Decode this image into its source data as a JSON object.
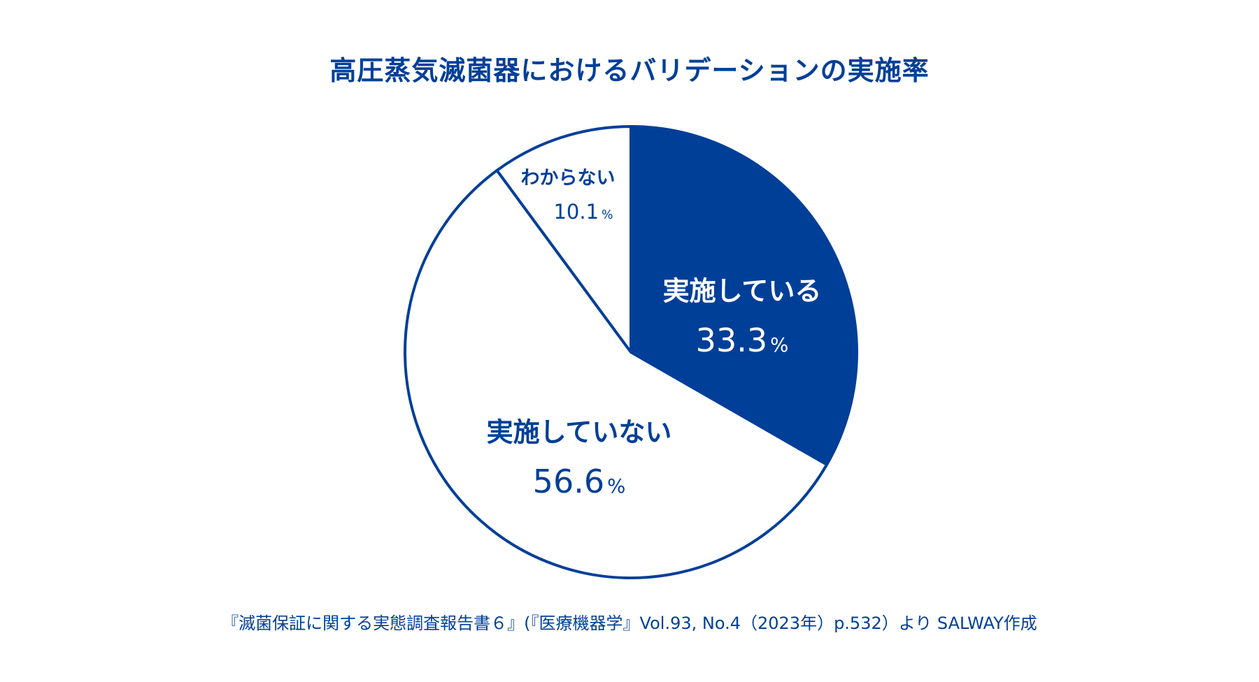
{
  "chart_data": {
    "type": "pie",
    "title": "高圧蒸気滅菌器におけるバリデーションの実施率",
    "slices": [
      {
        "label": "実施している",
        "value": 33.3,
        "value_text": "33.3",
        "fill": "#003f98",
        "text_color": "#ffffff"
      },
      {
        "label": "実施していない",
        "value": 56.6,
        "value_text": "56.6",
        "fill": "#ffffff",
        "text_color": "#003f98"
      },
      {
        "label": "わからない",
        "value": 10.1,
        "value_text": "10.1",
        "fill": "#ffffff",
        "text_color": "#003f98"
      }
    ],
    "unit": "%",
    "start": "top",
    "direction": "clockwise",
    "stroke_color": "#003f98"
  },
  "source": "『滅菌保証に関する実態調査報告書６』(『医療機器学』Vol.93, No.4（2023年）p.532）より SALWAY作成"
}
